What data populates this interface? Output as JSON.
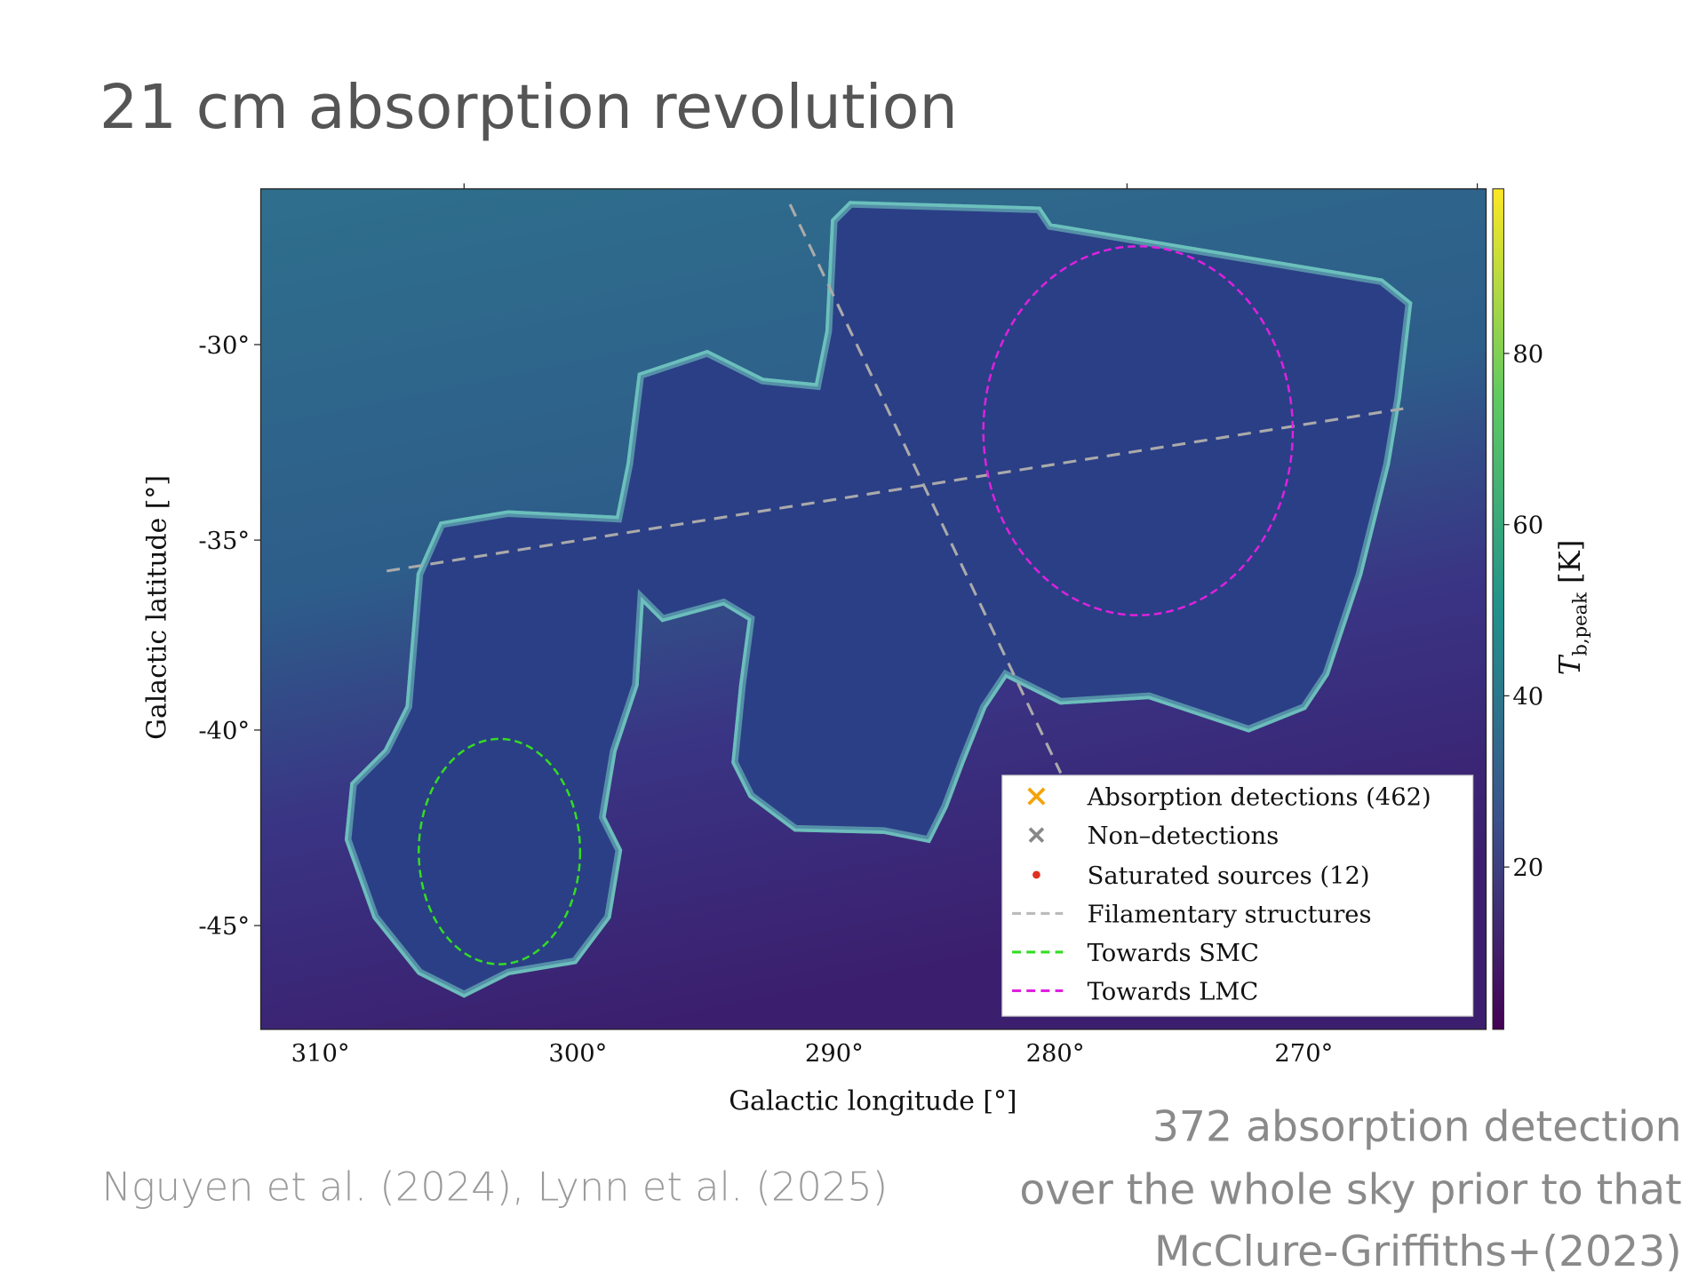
{
  "slide": {
    "title": "21 cm absorption revolution",
    "figure": {
      "y_axis_label": "Galactic latitude [°]",
      "x_axis_label": "Galactic longitude [°]",
      "y_ticks": [
        "-30°",
        "-35°",
        "-40°",
        "-45°"
      ],
      "x_ticks": [
        "310°",
        "300°",
        "290°",
        "280°",
        "270°"
      ],
      "colorbar": {
        "symbol": "T",
        "subscript": "b,peak",
        "unit": "[K]",
        "ticks": [
          "80",
          "60",
          "40",
          "20"
        ]
      },
      "legend": [
        "Absorption detections (462)",
        "Non–detections",
        "Saturated sources (12)",
        "Filamentary structures",
        "Towards SMC",
        "Towards LMC"
      ]
    },
    "citation": "Nguyen et al. (2024), Lynn et al. (2025)",
    "note": [
      "372 absorption detection",
      "over the whole sky prior to that",
      "McClure-Griffiths+(2023)"
    ]
  }
}
